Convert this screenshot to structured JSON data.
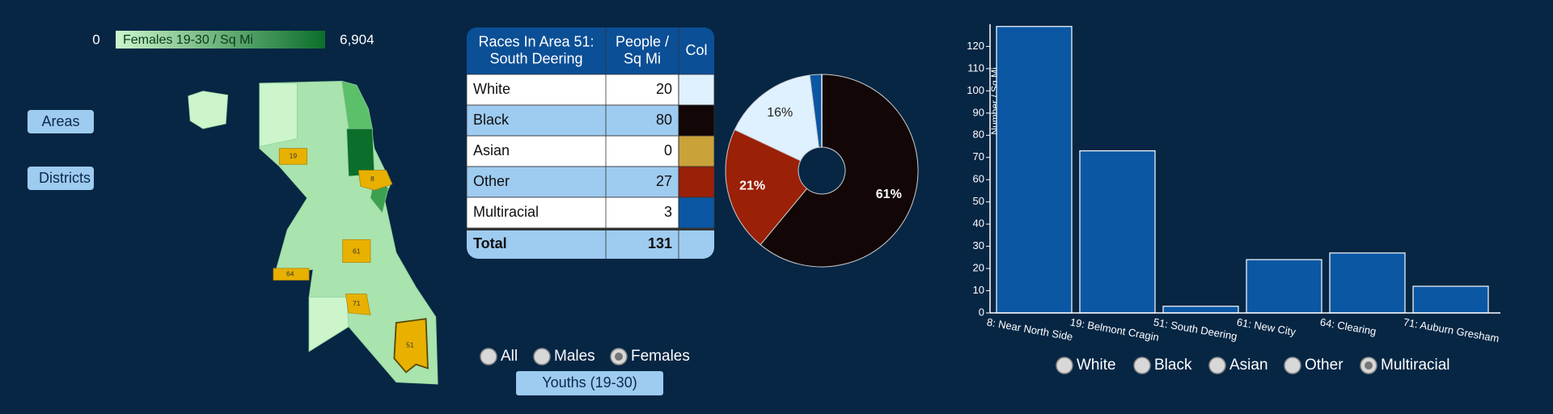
{
  "legend": {
    "min": "0",
    "label": "Females 19-30 / Sq Mi",
    "max": "6,904"
  },
  "nav_buttons": [
    "Areas",
    "Districts"
  ],
  "map_labels": [
    "19",
    "8",
    "61",
    "64",
    "71",
    "51"
  ],
  "table": {
    "header": [
      [
        "Races In Area 51:",
        "South Deering"
      ],
      [
        "People /",
        "Sq Mi"
      ],
      [
        "Col"
      ]
    ],
    "rows": [
      [
        "White",
        "20",
        "#dff1ff"
      ],
      [
        "Black",
        "80",
        "#120606"
      ],
      [
        "Asian",
        "0",
        "#c9a23a"
      ],
      [
        "Other",
        "27",
        "#9a2008"
      ],
      [
        "Multiracial",
        "3",
        "#0b57a4"
      ]
    ],
    "total": [
      "Total",
      "131"
    ]
  },
  "gender_options": [
    "All",
    "Males",
    "Females"
  ],
  "gender_selected": 2,
  "age_button": "Youths (19-30)",
  "race_options": [
    "White",
    "Black",
    "Asian",
    "Other",
    "Multiracial"
  ],
  "race_selected": 4,
  "chart_data": [
    {
      "type": "pie",
      "values": [
        61,
        21,
        16,
        2,
        0
      ],
      "value_labels": [
        "61%",
        "21%",
        "16%",
        null,
        null
      ],
      "colors": [
        "#120606",
        "#9a2008",
        "#dff1ff",
        "#0b57a4",
        "#c9a23a"
      ]
    },
    {
      "type": "bar",
      "y_label": "Number / Sq Mi",
      "categories": [
        "8: Near North Side",
        "19: Belmont Cragin",
        "51: South Deering",
        "61: New City",
        "64: Clearing",
        "71: Auburn Gresham"
      ],
      "values": [
        129,
        73,
        3,
        24,
        27,
        12
      ],
      "color": "#0b57a4",
      "ylim": [
        0,
        130
      ],
      "yticks": [
        0,
        10,
        20,
        30,
        40,
        50,
        60,
        70,
        80,
        90,
        100,
        110,
        120
      ]
    }
  ]
}
